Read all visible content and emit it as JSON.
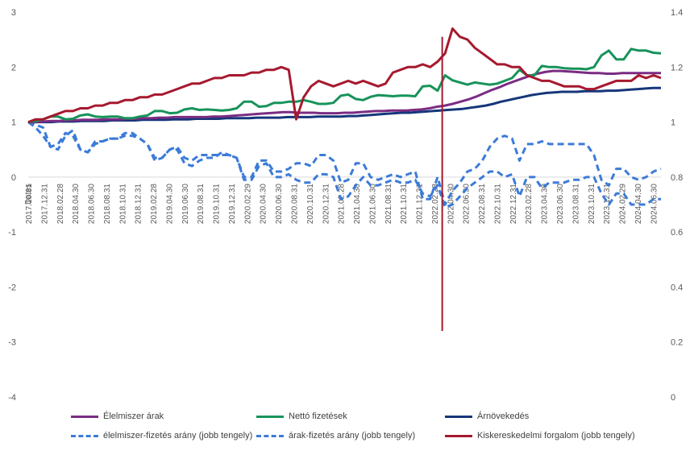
{
  "chart_data": {
    "type": "line",
    "title": "",
    "xlabel": "Dates",
    "y_left": {
      "ticks": [
        "3",
        "2",
        "1",
        "0",
        "-1",
        "-2",
        "-3",
        "-4"
      ],
      "min": -4,
      "max": 3
    },
    "y_right": {
      "ticks": [
        "1.4",
        "1.2",
        "1",
        "0.8",
        "0.6",
        "0.4",
        "0.2",
        "0"
      ],
      "min": 0,
      "max": 1.4
    },
    "x_start": "2017.10.31",
    "x_end": "2024.07.31",
    "x_tick_labels": [
      "2017.10.31",
      "2017.12.31",
      "2018.02.28",
      "2018.04.30",
      "2018.06.30",
      "2018.08.31",
      "2018.10.31",
      "2018.12.31",
      "2019.02.28",
      "2019.04.30",
      "2019.06.30",
      "2019.08.31",
      "2019.10.31",
      "2019.12.31",
      "2020.02.29",
      "2020.04.30",
      "2020.06.30",
      "2020.08.31",
      "2020.10.31",
      "2020.12.31",
      "2021.02.28",
      "2021.04.30",
      "2021.06.30",
      "2021.08.31",
      "2021.10.31",
      "2021.12.31",
      "2022.02.28",
      "2022.04.30",
      "2022.06.30",
      "2022.08.31",
      "2022.10.31",
      "2022.12.31",
      "2023.02.28",
      "2023.04.30",
      "2023.06.30",
      "2023.08.31",
      "2023.10.31",
      "2023.12.31",
      "2024.02.29",
      "2024.04.30",
      "2024.06.30"
    ],
    "vertical_marker": {
      "x": "2022.03.31",
      "y_from": 2.55,
      "y_to": -2.8,
      "color": "#A6192E"
    },
    "legend_position": "bottom",
    "series": [
      {
        "name": "Élelmiszer árak",
        "axis": "left",
        "color": "#7B2C83",
        "dash": "solid",
        "values": [
          1.0,
          1.0,
          1.01,
          1.02,
          1.02,
          1.03,
          1.03,
          1.04,
          1.04,
          1.04,
          1.05,
          1.05,
          1.05,
          1.06,
          1.06,
          1.07,
          1.07,
          1.08,
          1.08,
          1.09,
          1.09,
          1.09,
          1.09,
          1.09,
          1.1,
          1.1,
          1.11,
          1.12,
          1.13,
          1.14,
          1.15,
          1.16,
          1.17,
          1.18,
          1.18,
          1.17,
          1.17,
          1.17,
          1.16,
          1.16,
          1.16,
          1.17,
          1.17,
          1.18,
          1.19,
          1.2,
          1.2,
          1.21,
          1.21,
          1.21,
          1.22,
          1.23,
          1.25,
          1.28,
          1.3,
          1.33,
          1.37,
          1.41,
          1.46,
          1.52,
          1.58,
          1.63,
          1.69,
          1.74,
          1.79,
          1.84,
          1.88,
          1.91,
          1.93,
          1.93,
          1.92,
          1.91,
          1.9,
          1.89,
          1.89,
          1.88,
          1.88,
          1.89,
          1.89,
          1.89,
          1.89,
          1.89,
          1.89
        ]
      },
      {
        "name": "Nettó fizetések",
        "axis": "left",
        "color": "#17935A",
        "dash": "solid",
        "values": [
          1.0,
          1.02,
          1.05,
          1.1,
          1.1,
          1.05,
          1.06,
          1.12,
          1.14,
          1.1,
          1.09,
          1.1,
          1.1,
          1.07,
          1.07,
          1.1,
          1.12,
          1.2,
          1.2,
          1.16,
          1.17,
          1.23,
          1.25,
          1.22,
          1.23,
          1.22,
          1.21,
          1.22,
          1.25,
          1.37,
          1.37,
          1.28,
          1.29,
          1.35,
          1.35,
          1.37,
          1.37,
          1.4,
          1.37,
          1.33,
          1.33,
          1.35,
          1.48,
          1.5,
          1.42,
          1.4,
          1.46,
          1.49,
          1.48,
          1.47,
          1.48,
          1.48,
          1.47,
          1.65,
          1.66,
          1.57,
          1.85,
          1.76,
          1.72,
          1.68,
          1.72,
          1.7,
          1.68,
          1.7,
          1.75,
          1.8,
          1.95,
          1.85,
          1.85,
          2.02,
          2.0,
          2.0,
          1.98,
          1.97,
          1.97,
          1.96,
          2.0,
          2.21,
          2.3,
          2.14,
          2.14,
          2.33,
          2.3,
          2.3,
          2.26,
          2.25
        ]
      },
      {
        "name": "Árnövekedés",
        "axis": "left",
        "color": "#16367A",
        "dash": "solid",
        "values": [
          1.0,
          1.0,
          1.0,
          1.0,
          1.01,
          1.01,
          1.01,
          1.02,
          1.02,
          1.02,
          1.02,
          1.03,
          1.03,
          1.03,
          1.03,
          1.04,
          1.04,
          1.04,
          1.04,
          1.05,
          1.05,
          1.05,
          1.06,
          1.06,
          1.06,
          1.06,
          1.07,
          1.07,
          1.07,
          1.07,
          1.08,
          1.08,
          1.08,
          1.08,
          1.09,
          1.09,
          1.09,
          1.09,
          1.1,
          1.1,
          1.1,
          1.1,
          1.11,
          1.11,
          1.12,
          1.13,
          1.14,
          1.15,
          1.16,
          1.17,
          1.17,
          1.18,
          1.19,
          1.2,
          1.21,
          1.22,
          1.23,
          1.24,
          1.26,
          1.28,
          1.3,
          1.33,
          1.37,
          1.4,
          1.43,
          1.46,
          1.49,
          1.51,
          1.53,
          1.54,
          1.55,
          1.55,
          1.55,
          1.56,
          1.56,
          1.56,
          1.57,
          1.57,
          1.58,
          1.59,
          1.6,
          1.61,
          1.62,
          1.62
        ]
      },
      {
        "name": "élelmiszer-fizetés arány (jobb tengely)",
        "axis": "right",
        "color": "#3C7BD8",
        "dash": "dashed",
        "values": [
          1.0,
          0.99,
          0.98,
          0.91,
          0.9,
          0.95,
          0.97,
          0.9,
          0.89,
          0.93,
          0.93,
          0.94,
          0.94,
          0.95,
          0.95,
          0.94,
          0.92,
          0.87,
          0.87,
          0.9,
          0.91,
          0.87,
          0.86,
          0.88,
          0.88,
          0.88,
          0.88,
          0.88,
          0.87,
          0.8,
          0.8,
          0.86,
          0.86,
          0.82,
          0.82,
          0.83,
          0.85,
          0.85,
          0.84,
          0.88,
          0.88,
          0.86,
          0.78,
          0.79,
          0.85,
          0.85,
          0.8,
          0.79,
          0.8,
          0.81,
          0.8,
          0.81,
          0.82,
          0.72,
          0.72,
          0.8,
          0.7,
          0.75,
          0.78,
          0.82,
          0.83,
          0.86,
          0.91,
          0.94,
          0.95,
          0.94,
          0.86,
          0.92,
          0.92,
          0.93,
          0.92,
          0.92,
          0.92,
          0.92,
          0.92,
          0.92,
          0.88,
          0.79,
          0.77,
          0.83,
          0.83,
          0.8,
          0.79,
          0.8,
          0.82,
          0.83
        ]
      },
      {
        "name": "árak-fizetés arány (jobb tengely)",
        "axis": "right",
        "color": "#3C7BD8",
        "dash": "dashed",
        "values": [
          1.0,
          0.98,
          0.95,
          0.91,
          0.92,
          0.96,
          0.95,
          0.9,
          0.89,
          0.92,
          0.93,
          0.94,
          0.94,
          0.96,
          0.96,
          0.94,
          0.92,
          0.86,
          0.87,
          0.9,
          0.9,
          0.85,
          0.84,
          0.86,
          0.87,
          0.87,
          0.89,
          0.88,
          0.87,
          0.79,
          0.79,
          0.84,
          0.85,
          0.8,
          0.8,
          0.81,
          0.79,
          0.78,
          0.78,
          0.81,
          0.81,
          0.8,
          0.72,
          0.73,
          0.77,
          0.8,
          0.77,
          0.77,
          0.78,
          0.79,
          0.78,
          0.78,
          0.79,
          0.74,
          0.73,
          0.77,
          0.69,
          0.7,
          0.73,
          0.76,
          0.78,
          0.8,
          0.82,
          0.82,
          0.8,
          0.81,
          0.73,
          0.8,
          0.8,
          0.76,
          0.78,
          0.78,
          0.78,
          0.79,
          0.79,
          0.8,
          0.8,
          0.74,
          0.7,
          0.74,
          0.74,
          0.7,
          0.7,
          0.7,
          0.72,
          0.72
        ]
      },
      {
        "name": "Kiskereskedelmi forgalom (jobb tengely)",
        "axis": "right",
        "color": "#A6192E",
        "dash": "solid",
        "values": [
          1.0,
          1.01,
          1.01,
          1.02,
          1.03,
          1.04,
          1.04,
          1.05,
          1.05,
          1.06,
          1.06,
          1.07,
          1.07,
          1.08,
          1.08,
          1.09,
          1.09,
          1.1,
          1.1,
          1.11,
          1.12,
          1.13,
          1.14,
          1.14,
          1.15,
          1.16,
          1.16,
          1.17,
          1.17,
          1.17,
          1.18,
          1.18,
          1.19,
          1.19,
          1.2,
          1.19,
          1.01,
          1.09,
          1.13,
          1.15,
          1.14,
          1.13,
          1.14,
          1.15,
          1.14,
          1.15,
          1.14,
          1.13,
          1.14,
          1.18,
          1.19,
          1.2,
          1.2,
          1.21,
          1.2,
          1.22,
          1.25,
          1.34,
          1.31,
          1.3,
          1.27,
          1.25,
          1.23,
          1.21,
          1.21,
          1.2,
          1.2,
          1.17,
          1.16,
          1.15,
          1.15,
          1.14,
          1.13,
          1.13,
          1.13,
          1.12,
          1.12,
          1.13,
          1.14,
          1.15,
          1.15,
          1.15,
          1.17,
          1.16,
          1.17,
          1.16
        ]
      }
    ]
  }
}
